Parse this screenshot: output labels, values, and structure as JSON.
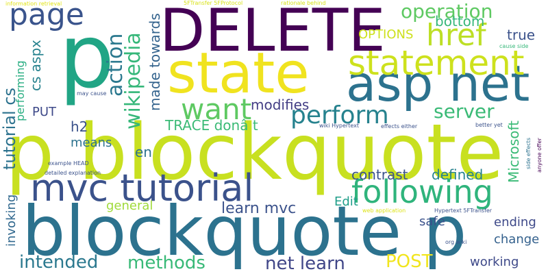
{
  "words": [
    {
      "text": "p blockquote",
      "color": "#c8e020"
    },
    {
      "text": "blockquote p",
      "color": "#2c728e"
    },
    {
      "text": "DELETE",
      "color": "#440154"
    },
    {
      "text": "p",
      "color": "#21a585"
    },
    {
      "text": "state",
      "color": "#f0e31f"
    },
    {
      "text": "asp net",
      "color": "#2c728e"
    },
    {
      "text": "mvc tutorial",
      "color": "#3b528b"
    },
    {
      "text": "statement",
      "color": "#cde11d"
    },
    {
      "text": "following",
      "color": "#2fb47c"
    },
    {
      "text": "page",
      "color": "#3a548c"
    },
    {
      "text": "href",
      "color": "#bddf26"
    },
    {
      "text": "want",
      "color": "#5ec962"
    },
    {
      "text": "perform",
      "color": "#26828e"
    },
    {
      "text": "operation",
      "color": "#5ec962"
    },
    {
      "text": "action",
      "color": "#2a788e"
    },
    {
      "text": "wikipedia",
      "color": "#35b779"
    },
    {
      "text": "tutorial cs",
      "color": "#2c728e"
    },
    {
      "text": "server",
      "color": "#3aba76"
    },
    {
      "text": "cs aspx",
      "color": "#26828e"
    },
    {
      "text": "learn mvc",
      "color": "#3b528b"
    },
    {
      "text": "net learn",
      "color": "#404688"
    },
    {
      "text": "methods",
      "color": "#38b977"
    },
    {
      "text": "intended",
      "color": "#2a788e"
    },
    {
      "text": "POST",
      "color": "#f1e51d"
    },
    {
      "text": "made towards",
      "color": "#33638d"
    },
    {
      "text": "modifies",
      "color": "#433e85"
    },
    {
      "text": "TRACE donâ t",
      "color": "#3aba76"
    },
    {
      "text": "contrast",
      "color": "#3b528b"
    },
    {
      "text": "defined",
      "color": "#26828e"
    },
    {
      "text": "Microsoft",
      "color": "#3aba76"
    },
    {
      "text": "bottom",
      "color": "#35b779"
    },
    {
      "text": "true",
      "color": "#3b528b"
    },
    {
      "text": "OPTIONS",
      "color": "#cde11d"
    },
    {
      "text": "performing",
      "color": "#27ad81"
    },
    {
      "text": "h2",
      "color": "#3b528b"
    },
    {
      "text": "means",
      "color": "#2c728e"
    },
    {
      "text": "en",
      "color": "#2c728e"
    },
    {
      "text": "PUT",
      "color": "#3e4989"
    },
    {
      "text": "general",
      "color": "#9fda3a"
    },
    {
      "text": "Edit",
      "color": "#1f9e89"
    },
    {
      "text": "invoking",
      "color": "#31688e"
    },
    {
      "text": "safe",
      "color": "#3b528b"
    },
    {
      "text": "ending",
      "color": "#3e4989"
    },
    {
      "text": "change",
      "color": "#34618d"
    },
    {
      "text": "working",
      "color": "#3e4989"
    },
    {
      "text": "information retrieval",
      "color": "#e2e418"
    },
    {
      "text": "5FTransfer 5FProtocol",
      "color": "#d8e219"
    },
    {
      "text": "rationale behind",
      "color": "#d8e219"
    },
    {
      "text": "may cause",
      "color": "#3b528b"
    },
    {
      "text": "cause side",
      "color": "#35b779"
    },
    {
      "text": "wiki Hypertext",
      "color": "#3b528b"
    },
    {
      "text": "effects either",
      "color": "#3b528b"
    },
    {
      "text": "better yet",
      "color": "#3b528b"
    },
    {
      "text": "side effects",
      "color": "#2c728e"
    },
    {
      "text": "anyone offer",
      "color": "#440154"
    },
    {
      "text": "example HEAD",
      "color": "#3b528b"
    },
    {
      "text": "detailed explanation",
      "color": "#3b528b"
    },
    {
      "text": "web application",
      "color": "#dde318"
    },
    {
      "text": "Hypertext 5FTransfer",
      "color": "#3b528b"
    },
    {
      "text": "org wiki",
      "color": "#3b528b"
    }
  ]
}
